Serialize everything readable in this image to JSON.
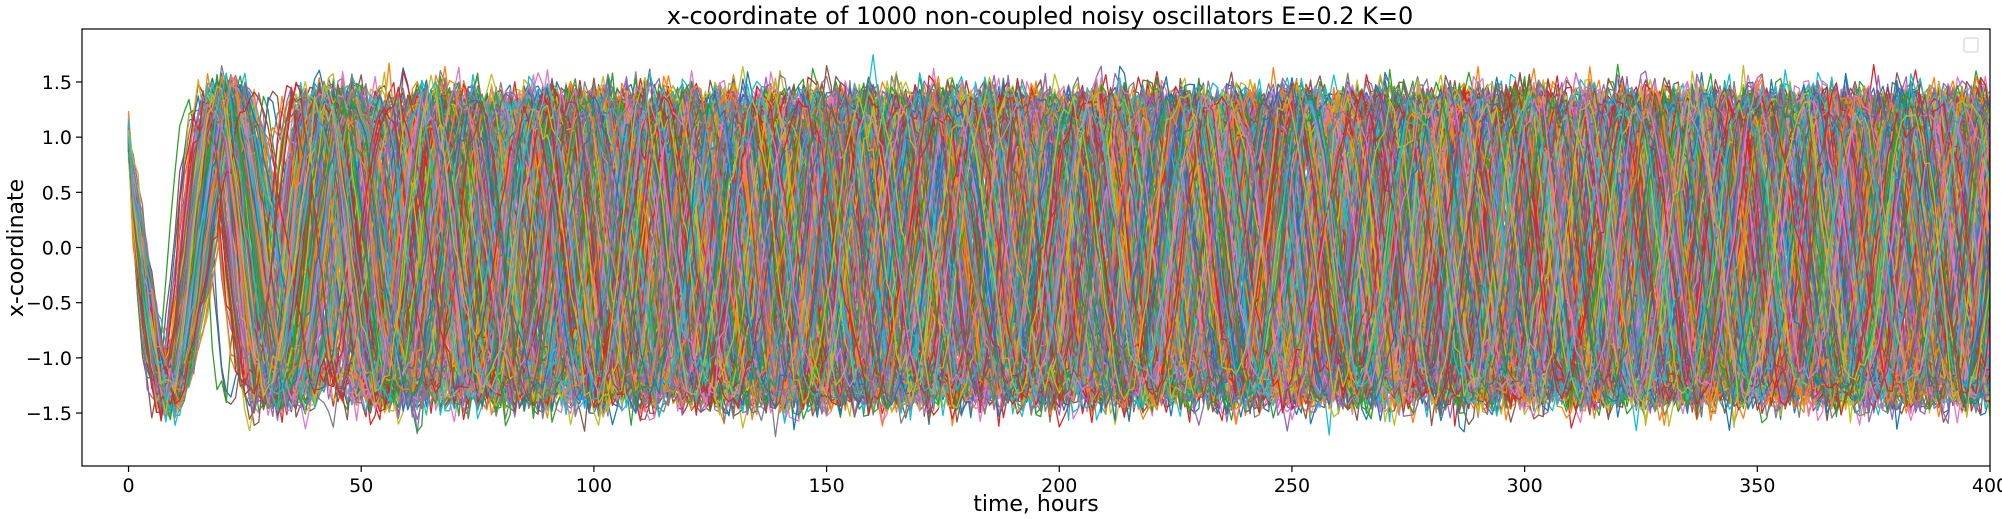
{
  "chart_data": {
    "type": "line",
    "title": "x-coordinate of 1000 non-coupled noisy oscillators E=0.2 K=0",
    "xlabel": "time, hours",
    "ylabel": "x-coordinate",
    "xlim": [
      -10,
      400
    ],
    "ylim": [
      -1.98,
      1.98
    ],
    "x_ticks": [
      0,
      50,
      100,
      150,
      200,
      250,
      300,
      350,
      400
    ],
    "x_tick_labels": [
      "0",
      "50",
      "100",
      "150",
      "200",
      "250",
      "300",
      "350",
      "400"
    ],
    "y_ticks": [
      1.5,
      1.0,
      0.5,
      0.0,
      -0.5,
      -1.0,
      -1.5
    ],
    "y_tick_labels": [
      "1.5",
      "1.0",
      "0.5",
      "0.0",
      "−0.5",
      "−1.0",
      "−1.5"
    ],
    "grid": false,
    "legend": {
      "placement": "top-right",
      "entries": []
    },
    "n_oscillators": 1000,
    "initial_value": 1.0,
    "amplitude": 1.3,
    "mean_period_hours": 24,
    "color_cycle": [
      "#1f77b4",
      "#ff7f0e",
      "#2ca02c",
      "#d62728",
      "#9467bd",
      "#8c564b",
      "#e377c2",
      "#7f7f7f",
      "#bcbd22",
      "#17becf"
    ]
  }
}
